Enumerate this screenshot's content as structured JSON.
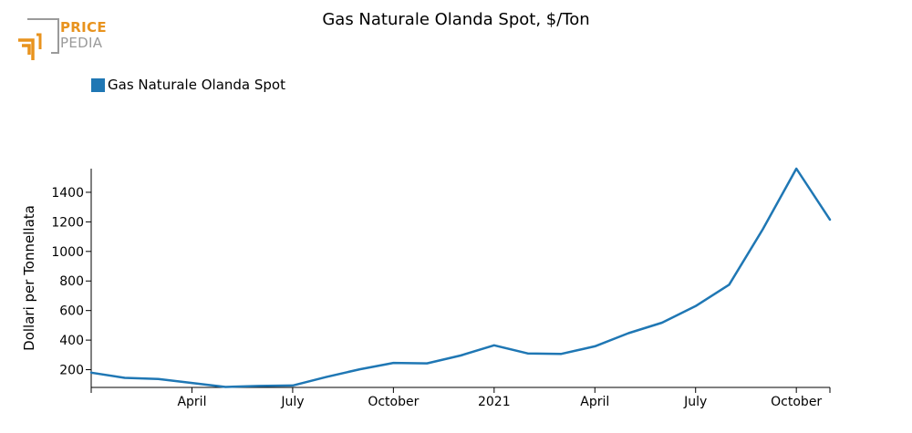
{
  "logo": {
    "top_word": "PRICE",
    "bottom_word": "PEDIA",
    "accent_color": "#e8931e",
    "gray_color": "#9a9a9a"
  },
  "chart_data": {
    "type": "line",
    "title": "Gas Naturale Olanda Spot, $/Ton",
    "xlabel": "",
    "ylabel": "Dollari per Tonnellata",
    "legend_position": "top-left",
    "grid": false,
    "x_ticks": [
      "April",
      "July",
      "October",
      "2021",
      "April",
      "July",
      "October"
    ],
    "x": [
      "2020-01",
      "2020-02",
      "2020-03",
      "2020-04",
      "2020-05",
      "2020-06",
      "2020-07",
      "2020-08",
      "2020-09",
      "2020-10",
      "2020-11",
      "2020-12",
      "2021-01",
      "2021-02",
      "2021-03",
      "2021-04",
      "2021-05",
      "2021-06",
      "2021-07",
      "2021-08",
      "2021-09",
      "2021-10",
      "2021-11"
    ],
    "ylim": [
      80,
      1560
    ],
    "y_ticks": [
      200,
      400,
      600,
      800,
      1000,
      1200,
      1400
    ],
    "series": [
      {
        "name": "Gas Naturale Olanda Spot",
        "color": "#1f77b4",
        "values": [
          180,
          145,
          137,
          110,
          83,
          90,
          93,
          150,
          203,
          246,
          243,
          296,
          365,
          310,
          307,
          358,
          447,
          518,
          630,
          775,
          1150,
          1560,
          1215
        ]
      }
    ]
  }
}
